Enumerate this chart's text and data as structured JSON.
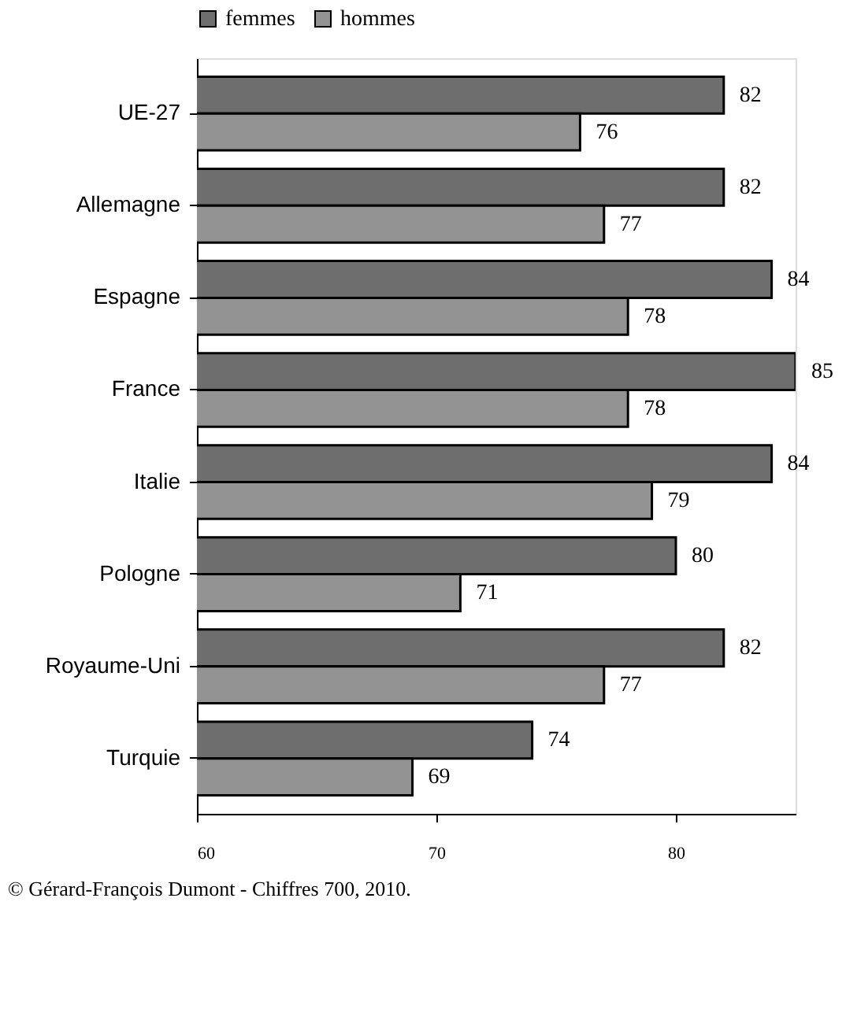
{
  "chart_data": {
    "type": "bar",
    "orientation": "horizontal",
    "categories": [
      "UE-27",
      "Allemagne",
      "Espagne",
      "France",
      "Italie",
      "Pologne",
      "Royaume-Uni",
      "Turquie"
    ],
    "series": [
      {
        "name": "femmes",
        "color": "#6e6e6e",
        "values": [
          82,
          82,
          84,
          85,
          84,
          80,
          82,
          74
        ]
      },
      {
        "name": "hommes",
        "color": "#939393",
        "values": [
          76,
          77,
          78,
          78,
          79,
          71,
          77,
          69
        ]
      }
    ],
    "xlim": [
      60,
      85
    ],
    "xticks": [
      60,
      70,
      80
    ],
    "data_labels": true,
    "legend": "top",
    "grid": false,
    "annotations": [
      "© Gérard-François Dumont - Chiffres 700, 2010."
    ]
  }
}
